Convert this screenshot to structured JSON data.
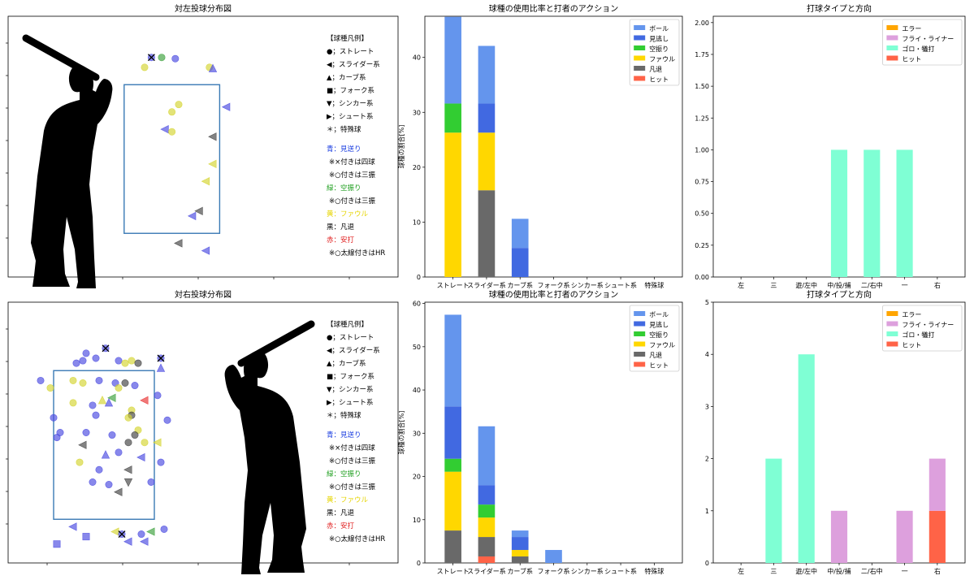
{
  "pitch_legend": {
    "title": "【球種凡例】",
    "shapes": [
      "●；ストレート",
      "◀；スライダー系",
      "▲；カーブ系",
      "■；フォーク系",
      "▼；シンカー系",
      "▶；シュート系",
      "＊；特殊球"
    ],
    "colors": [
      {
        "text": "青：見送り",
        "color": "#1a3de0"
      },
      {
        "text": "※×付きは四球",
        "color": "#000000"
      },
      {
        "text": "※○付きは三振",
        "color": "#000000"
      },
      {
        "text": "緑：空振り",
        "color": "#22a022"
      },
      {
        "text": "※○付きは三振",
        "color": "#000000"
      },
      {
        "text": "黄：ファウル",
        "color": "#e6d400"
      },
      {
        "text": "黒：凡退",
        "color": "#000000"
      },
      {
        "text": "赤：安打",
        "color": "#e02020"
      },
      {
        "text": "※○太線付きはHR",
        "color": "#000000"
      }
    ]
  },
  "colors": {
    "ball": "#6495ed",
    "looking": "#4169e1",
    "swinging": "#32cd32",
    "foul": "#ffd700",
    "out": "#696969",
    "hit": "#ff6347",
    "error": "#ffa500",
    "fly": "#dda0dd",
    "grounder": "#7fffd4",
    "pt_blue": "#4848e0",
    "pt_green": "#3aa03a",
    "pt_yellow": "#d4d430",
    "pt_black": "#404040",
    "pt_red": "#e83030"
  },
  "chart_data": [
    {
      "type": "scatter",
      "title": "対左投球分布図",
      "batter": "left-side",
      "xlim": [
        0,
        100
      ],
      "ylim": [
        0,
        100
      ],
      "strike_zone": {
        "x": [
          34,
          62
        ],
        "y": [
          15,
          75
        ]
      },
      "points": [
        {
          "x": 42,
          "y": 86,
          "shape": "circle",
          "color": "blue",
          "mark": "x"
        },
        {
          "x": 45,
          "y": 86,
          "shape": "circle",
          "color": "green"
        },
        {
          "x": 49,
          "y": 85.5,
          "shape": "circle",
          "color": "blue"
        },
        {
          "x": 40,
          "y": 82,
          "shape": "circle",
          "color": "yellow"
        },
        {
          "x": 59,
          "y": 82,
          "shape": "circle",
          "color": "yellow"
        },
        {
          "x": 60,
          "y": 81.5,
          "shape": "triangle-up",
          "color": "blue"
        },
        {
          "x": 50,
          "y": 67,
          "shape": "circle",
          "color": "yellow"
        },
        {
          "x": 48,
          "y": 64,
          "shape": "circle",
          "color": "yellow"
        },
        {
          "x": 64,
          "y": 66,
          "shape": "triangle-left",
          "color": "blue"
        },
        {
          "x": 46,
          "y": 57,
          "shape": "triangle-left",
          "color": "blue"
        },
        {
          "x": 48,
          "y": 56,
          "shape": "circle",
          "color": "yellow"
        },
        {
          "x": 60,
          "y": 54,
          "shape": "triangle-left",
          "color": "black"
        },
        {
          "x": 60,
          "y": 43,
          "shape": "triangle-left",
          "color": "yellow"
        },
        {
          "x": 58,
          "y": 36,
          "shape": "triangle-left",
          "color": "yellow"
        },
        {
          "x": 56,
          "y": 24,
          "shape": "triangle-left",
          "color": "black"
        },
        {
          "x": 54,
          "y": 22,
          "shape": "triangle-left",
          "color": "blue"
        },
        {
          "x": 50,
          "y": 11,
          "shape": "triangle-left",
          "color": "black"
        },
        {
          "x": 58,
          "y": 8,
          "shape": "triangle-left",
          "color": "blue"
        }
      ]
    },
    {
      "type": "bar",
      "title": "球種の使用比率と打者のアクション",
      "ylabel": "球種の割合[%]",
      "categories": [
        "ストレート",
        "スライダー系",
        "カーブ系",
        "フォーク系",
        "シンカー系",
        "シュート系",
        "特殊球"
      ],
      "ylim": [
        0,
        47.5
      ],
      "yticks": [
        0,
        10,
        20,
        30,
        40
      ],
      "series": [
        {
          "name": "ヒット",
          "key": "hit",
          "values": [
            0,
            0,
            0,
            0,
            0,
            0,
            0
          ]
        },
        {
          "name": "凡退",
          "key": "out",
          "values": [
            0,
            15.8,
            0,
            0,
            0,
            0,
            0
          ]
        },
        {
          "name": "ファウル",
          "key": "foul",
          "values": [
            26.3,
            10.5,
            0,
            0,
            0,
            0,
            0
          ]
        },
        {
          "name": "空振り",
          "key": "swinging",
          "values": [
            5.3,
            0,
            0,
            0,
            0,
            0,
            0
          ]
        },
        {
          "name": "見逃し",
          "key": "looking",
          "values": [
            0,
            5.3,
            5.3,
            0,
            0,
            0,
            0
          ]
        },
        {
          "name": "ボール",
          "key": "ball",
          "values": [
            15.8,
            10.5,
            5.3,
            0,
            0,
            0,
            0
          ]
        }
      ],
      "legend_order": [
        "ボール",
        "見逃し",
        "空振り",
        "ファウル",
        "凡退",
        "ヒット"
      ],
      "legend": "top-right"
    },
    {
      "type": "bar",
      "title": "打球タイプと方向",
      "categories": [
        "左",
        "三",
        "遊/左中",
        "中/投/捕",
        "二/右中",
        "一",
        "右"
      ],
      "ylim": [
        0,
        2.05
      ],
      "yticks": [
        0,
        0.25,
        0.5,
        0.75,
        1.0,
        1.25,
        1.5,
        1.75,
        2.0
      ],
      "tick_format": "2dec",
      "series": [
        {
          "name": "ヒット",
          "key": "hit",
          "values": [
            0,
            0,
            0,
            0,
            0,
            0,
            0
          ]
        },
        {
          "name": "ゴロ・犠打",
          "key": "grounder",
          "values": [
            0,
            0,
            0,
            1,
            1,
            1,
            0
          ]
        },
        {
          "name": "フライ・ライナー",
          "key": "fly",
          "values": [
            0,
            0,
            0,
            0,
            0,
            0,
            0
          ]
        },
        {
          "name": "エラー",
          "key": "error",
          "values": [
            0,
            0,
            0,
            0,
            0,
            0,
            0
          ]
        }
      ],
      "legend_order": [
        "エラー",
        "フライ・ライナー",
        "ゴロ・犠打",
        "ヒット"
      ],
      "legend": "top-right"
    },
    {
      "type": "scatter",
      "title": "対右投球分布図",
      "batter": "right-side",
      "xlim": [
        0,
        100
      ],
      "ylim": [
        0,
        100
      ],
      "strike_zone": {
        "x": [
          14,
          45
        ],
        "y": [
          15,
          75
        ]
      },
      "points": [
        {
          "x": 21,
          "y": 78,
          "shape": "circle",
          "color": "blue"
        },
        {
          "x": 23,
          "y": 79,
          "shape": "circle",
          "color": "blue"
        },
        {
          "x": 24,
          "y": 82,
          "shape": "circle",
          "color": "blue"
        },
        {
          "x": 27,
          "y": 80,
          "shape": "circle",
          "color": "blue"
        },
        {
          "x": 30,
          "y": 84,
          "shape": "circle",
          "color": "blue",
          "mark": "x"
        },
        {
          "x": 34,
          "y": 79,
          "shape": "circle",
          "color": "blue"
        },
        {
          "x": 36,
          "y": 78,
          "shape": "circle",
          "color": "yellow"
        },
        {
          "x": 38,
          "y": 79,
          "shape": "circle",
          "color": "yellow"
        },
        {
          "x": 40,
          "y": 78,
          "shape": "circle",
          "color": "black"
        },
        {
          "x": 47,
          "y": 80,
          "shape": "circle",
          "color": "blue",
          "mark": "x"
        },
        {
          "x": 47,
          "y": 76,
          "shape": "triangle-up",
          "color": "blue"
        },
        {
          "x": 10,
          "y": 71,
          "shape": "circle",
          "color": "blue"
        },
        {
          "x": 13,
          "y": 68,
          "shape": "circle",
          "color": "yellow"
        },
        {
          "x": 20,
          "y": 71,
          "shape": "circle",
          "color": "yellow"
        },
        {
          "x": 23,
          "y": 70,
          "shape": "circle",
          "color": "yellow"
        },
        {
          "x": 28,
          "y": 71,
          "shape": "circle",
          "color": "blue"
        },
        {
          "x": 33,
          "y": 70,
          "shape": "circle",
          "color": "blue"
        },
        {
          "x": 34,
          "y": 68,
          "shape": "circle",
          "color": "yellow"
        },
        {
          "x": 36,
          "y": 70,
          "shape": "circle",
          "color": "black"
        },
        {
          "x": 39,
          "y": 69,
          "shape": "circle",
          "color": "blue"
        },
        {
          "x": 46,
          "y": 65,
          "shape": "circle",
          "color": "blue"
        },
        {
          "x": 20,
          "y": 62,
          "shape": "circle",
          "color": "yellow"
        },
        {
          "x": 26,
          "y": 61,
          "shape": "circle",
          "color": "blue"
        },
        {
          "x": 29,
          "y": 63,
          "shape": "triangle-up",
          "color": "yellow"
        },
        {
          "x": 31,
          "y": 62,
          "shape": "triangle-up",
          "color": "blue"
        },
        {
          "x": 32,
          "y": 64,
          "shape": "triangle-left",
          "color": "green"
        },
        {
          "x": 42,
          "y": 63,
          "shape": "triangle-left",
          "color": "red"
        },
        {
          "x": 38,
          "y": 59,
          "shape": "circle",
          "color": "yellow"
        },
        {
          "x": 38,
          "y": 57,
          "shape": "circle",
          "color": "black"
        },
        {
          "x": 14,
          "y": 56,
          "shape": "circle",
          "color": "blue"
        },
        {
          "x": 27,
          "y": 57,
          "shape": "circle",
          "color": "blue"
        },
        {
          "x": 37,
          "y": 56,
          "shape": "circle",
          "color": "yellow"
        },
        {
          "x": 49,
          "y": 55,
          "shape": "circle",
          "color": "blue"
        },
        {
          "x": 40,
          "y": 51,
          "shape": "circle",
          "color": "yellow"
        },
        {
          "x": 16,
          "y": 50,
          "shape": "circle",
          "color": "blue"
        },
        {
          "x": 15,
          "y": 48,
          "shape": "circle",
          "color": "blue"
        },
        {
          "x": 24,
          "y": 50,
          "shape": "circle",
          "color": "blue"
        },
        {
          "x": 32,
          "y": 49,
          "shape": "circle",
          "color": "blue"
        },
        {
          "x": 39,
          "y": 49,
          "shape": "circle",
          "color": "black"
        },
        {
          "x": 37,
          "y": 46,
          "shape": "circle",
          "color": "black"
        },
        {
          "x": 42,
          "y": 46,
          "shape": "circle",
          "color": "yellow"
        },
        {
          "x": 46,
          "y": 46,
          "shape": "triangle-left",
          "color": "yellow"
        },
        {
          "x": 23,
          "y": 45,
          "shape": "triangle-left",
          "color": "black"
        },
        {
          "x": 30,
          "y": 41,
          "shape": "triangle-up",
          "color": "blue"
        },
        {
          "x": 34,
          "y": 42,
          "shape": "circle",
          "color": "blue"
        },
        {
          "x": 41,
          "y": 40,
          "shape": "triangle-left",
          "color": "blue"
        },
        {
          "x": 47,
          "y": 38,
          "shape": "circle",
          "color": "blue"
        },
        {
          "x": 22,
          "y": 38,
          "shape": "circle",
          "color": "yellow"
        },
        {
          "x": 28,
          "y": 35,
          "shape": "circle",
          "color": "blue"
        },
        {
          "x": 37,
          "y": 35,
          "shape": "triangle-left",
          "color": "black"
        },
        {
          "x": 26,
          "y": 30,
          "shape": "circle",
          "color": "blue"
        },
        {
          "x": 31,
          "y": 29,
          "shape": "circle",
          "color": "blue"
        },
        {
          "x": 37,
          "y": 30,
          "shape": "triangle-down",
          "color": "black"
        },
        {
          "x": 44,
          "y": 30,
          "shape": "circle",
          "color": "blue"
        },
        {
          "x": 34,
          "y": 26,
          "shape": "triangle-left",
          "color": "black"
        },
        {
          "x": 20,
          "y": 12,
          "shape": "triangle-left",
          "color": "blue"
        },
        {
          "x": 24,
          "y": 8,
          "shape": "square",
          "color": "blue"
        },
        {
          "x": 33,
          "y": 10,
          "shape": "triangle-left",
          "color": "yellow"
        },
        {
          "x": 35,
          "y": 9,
          "shape": "circle",
          "color": "blue",
          "mark": "x"
        },
        {
          "x": 44,
          "y": 10,
          "shape": "triangle-left",
          "color": "green"
        },
        {
          "x": 37,
          "y": 6,
          "shape": "triangle-left",
          "color": "blue"
        },
        {
          "x": 41,
          "y": 9,
          "shape": "circle",
          "color": "blue"
        },
        {
          "x": 42,
          "y": 6,
          "shape": "triangle-left",
          "color": "blue"
        },
        {
          "x": 48,
          "y": 11,
          "shape": "circle",
          "color": "blue"
        },
        {
          "x": 15,
          "y": 5,
          "shape": "square",
          "color": "blue"
        }
      ]
    },
    {
      "type": "bar",
      "title": "球種の使用比率と打者のアクション",
      "ylabel": "球種の割合[%]",
      "categories": [
        "ストレート",
        "スライダー系",
        "カーブ系",
        "フォーク系",
        "シンカー系",
        "シュート系",
        "特殊球"
      ],
      "ylim": [
        0,
        60.3
      ],
      "yticks": [
        0,
        10,
        20,
        30,
        40,
        50,
        60
      ],
      "series": [
        {
          "name": "ヒット",
          "key": "hit",
          "values": [
            0,
            1.5,
            0,
            0,
            0,
            0,
            0
          ]
        },
        {
          "name": "凡退",
          "key": "out",
          "values": [
            7.5,
            4.5,
            1.5,
            0,
            0,
            0,
            0
          ]
        },
        {
          "name": "ファウル",
          "key": "foul",
          "values": [
            13.6,
            4.5,
            1.5,
            0,
            0,
            0,
            0
          ]
        },
        {
          "name": "空振り",
          "key": "swinging",
          "values": [
            3.0,
            3.0,
            0,
            0,
            0,
            0,
            0
          ]
        },
        {
          "name": "見逃し",
          "key": "looking",
          "values": [
            12.1,
            4.5,
            3.0,
            0,
            0,
            0,
            0
          ]
        },
        {
          "name": "ボール",
          "key": "ball",
          "values": [
            21.2,
            13.6,
            1.5,
            3.0,
            0,
            0,
            0
          ]
        }
      ],
      "legend_order": [
        "ボール",
        "見逃し",
        "空振り",
        "ファウル",
        "凡退",
        "ヒット"
      ],
      "legend": "top-right"
    },
    {
      "type": "bar",
      "title": "打球タイプと方向",
      "categories": [
        "左",
        "三",
        "遊/左中",
        "中/投/捕",
        "二/右中",
        "一",
        "右"
      ],
      "ylim": [
        0,
        5
      ],
      "yticks": [
        0,
        1,
        2,
        3,
        4,
        5
      ],
      "tick_format": "int",
      "series": [
        {
          "name": "ヒット",
          "key": "hit",
          "values": [
            0,
            0,
            0,
            0,
            0,
            0,
            1
          ]
        },
        {
          "name": "ゴロ・犠打",
          "key": "grounder",
          "values": [
            0,
            2,
            4,
            0,
            0,
            0,
            0
          ]
        },
        {
          "name": "フライ・ライナー",
          "key": "fly",
          "values": [
            0,
            0,
            0,
            1,
            0,
            1,
            1
          ]
        },
        {
          "name": "エラー",
          "key": "error",
          "values": [
            0,
            0,
            0,
            0,
            0,
            0,
            0
          ]
        }
      ],
      "legend_order": [
        "エラー",
        "フライ・ライナー",
        "ゴロ・犠打",
        "ヒット"
      ],
      "legend": "top-right"
    }
  ]
}
